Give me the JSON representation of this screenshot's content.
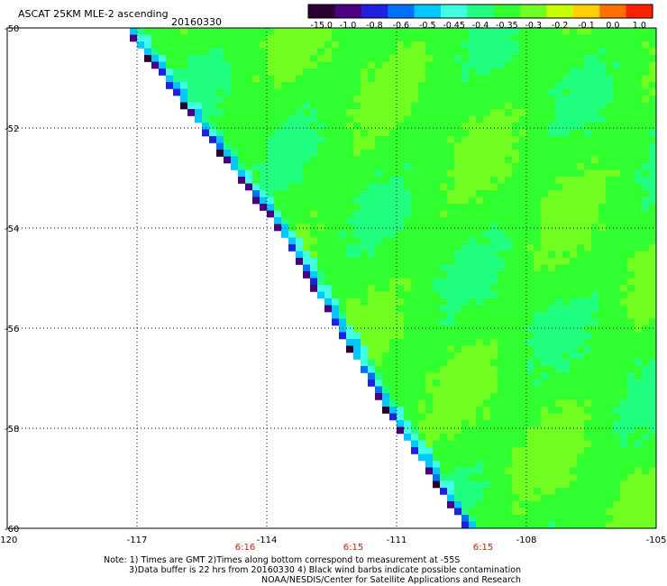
{
  "header": {
    "title": "ASCAT 25KM MLE-2 ascending",
    "date": "20160330"
  },
  "colorbar": {
    "labels": [
      "-15.0",
      "-1.0",
      "-0.8",
      "-0.6",
      "-0.5",
      "-0.45",
      "-0.4",
      "-0.35",
      "-0.3",
      "-0.2",
      "-0.1",
      "0.0",
      "1.0"
    ],
    "colors": [
      "#2a0030",
      "#4b0082",
      "#2020e0",
      "#0070ff",
      "#00c8ff",
      "#40ffe0",
      "#20ff80",
      "#30ff30",
      "#70ff20",
      "#c8ff00",
      "#ffd000",
      "#ff7000",
      "#ff2000"
    ]
  },
  "notes": {
    "line1": "Note: 1) Times are GMT 2)Times along bottom correspond to measurement at -55S",
    "line2": "3)Data buffer is 22 hrs from 20160330 4) Black wind barbs indicate possible contamination",
    "line3": "NOAA/NESDIS/Center for Satellite Applications and Research"
  },
  "chart_data": {
    "type": "heatmap",
    "title": "ASCAT 25KM MLE-2 ascending",
    "date": "20160330",
    "xlim": [
      -120,
      -105
    ],
    "ylim": [
      -60,
      -50
    ],
    "x_ticks": [
      -120,
      -117,
      -114,
      -111,
      -108,
      -105
    ],
    "x_tick_labels": [
      "-120",
      "-117",
      "-114",
      "-111",
      "-108",
      "-105"
    ],
    "y_ticks": [
      -50,
      -52,
      -54,
      -56,
      -58,
      -60
    ],
    "y_tick_labels": [
      "-50",
      "-52",
      "-54",
      "-56",
      "-58",
      "-60"
    ],
    "time_labels": [
      {
        "lon": -114.5,
        "label": "6:16"
      },
      {
        "lon": -112,
        "label": "6:15"
      },
      {
        "lon": -109,
        "label": "6:15"
      }
    ],
    "grid": true,
    "swath_west_edge": [
      [
        -117.3,
        -50
      ],
      [
        -113.6,
        -54.2
      ],
      [
        -111.3,
        -57.6
      ],
      [
        -109.4,
        -60
      ]
    ],
    "field_note": "MLE values mostly -0.35 to -0.2 across the swath; values fall to -1.0 and below along the western edge"
  }
}
